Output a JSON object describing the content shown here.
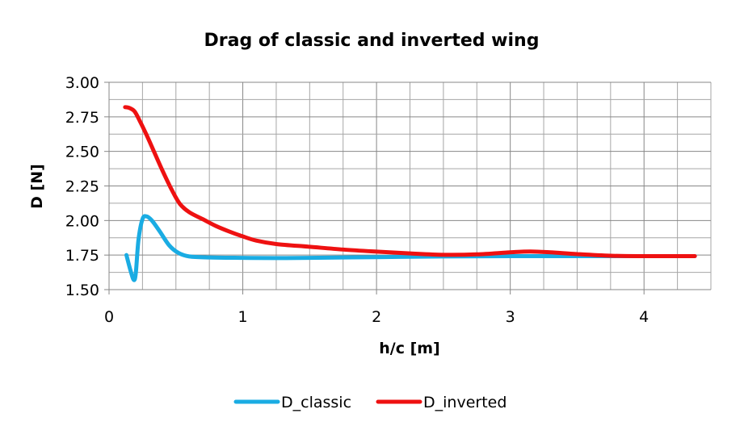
{
  "chart_data": {
    "type": "line",
    "title": "Drag of classic and inverted wing",
    "xlabel": "h/c [m]",
    "ylabel": "D [N]",
    "xlim": [
      0,
      4.5
    ],
    "ylim": [
      1.5,
      3.0
    ],
    "x_ticks": [
      0,
      1,
      2,
      3,
      4
    ],
    "x_tick_labels": [
      "0",
      "1",
      "2",
      "3",
      "4"
    ],
    "x_minor_step": 0.25,
    "y_ticks": [
      1.5,
      1.75,
      2.0,
      2.25,
      2.5,
      2.75,
      3.0
    ],
    "y_tick_labels": [
      "1.50",
      "1.75",
      "2.00",
      "2.25",
      "2.50",
      "2.75",
      "3.00"
    ],
    "y_minor_step": 0.125,
    "grid": true,
    "legend_position": "bottom",
    "series": [
      {
        "name": "D_classic",
        "color": "#1AACE3",
        "points": [
          [
            0.13,
            1.75
          ],
          [
            0.16,
            1.64
          ],
          [
            0.185,
            1.57
          ],
          [
            0.2,
            1.62
          ],
          [
            0.22,
            1.86
          ],
          [
            0.25,
            2.01
          ],
          [
            0.28,
            2.03
          ],
          [
            0.32,
            2.0
          ],
          [
            0.38,
            1.92
          ],
          [
            0.45,
            1.82
          ],
          [
            0.52,
            1.765
          ],
          [
            0.6,
            1.74
          ],
          [
            0.75,
            1.733
          ],
          [
            1.0,
            1.73
          ],
          [
            1.25,
            1.728
          ],
          [
            1.5,
            1.73
          ],
          [
            2.0,
            1.735
          ],
          [
            2.5,
            1.74
          ],
          [
            3.0,
            1.742
          ],
          [
            3.5,
            1.742
          ],
          [
            4.0,
            1.742
          ],
          [
            4.38,
            1.742
          ]
        ]
      },
      {
        "name": "D_inverted",
        "color": "#EE1111",
        "points": [
          [
            0.12,
            2.82
          ],
          [
            0.15,
            2.815
          ],
          [
            0.19,
            2.79
          ],
          [
            0.23,
            2.72
          ],
          [
            0.28,
            2.62
          ],
          [
            0.34,
            2.49
          ],
          [
            0.4,
            2.36
          ],
          [
            0.47,
            2.22
          ],
          [
            0.53,
            2.12
          ],
          [
            0.6,
            2.06
          ],
          [
            0.7,
            2.01
          ],
          [
            0.8,
            1.96
          ],
          [
            0.9,
            1.92
          ],
          [
            1.0,
            1.885
          ],
          [
            1.1,
            1.855
          ],
          [
            1.25,
            1.83
          ],
          [
            1.5,
            1.81
          ],
          [
            1.75,
            1.79
          ],
          [
            2.0,
            1.775
          ],
          [
            2.25,
            1.762
          ],
          [
            2.5,
            1.752
          ],
          [
            2.75,
            1.755
          ],
          [
            3.0,
            1.77
          ],
          [
            3.15,
            1.776
          ],
          [
            3.3,
            1.77
          ],
          [
            3.5,
            1.757
          ],
          [
            3.75,
            1.745
          ],
          [
            4.0,
            1.742
          ],
          [
            4.2,
            1.742
          ],
          [
            4.38,
            1.742
          ]
        ]
      }
    ]
  }
}
